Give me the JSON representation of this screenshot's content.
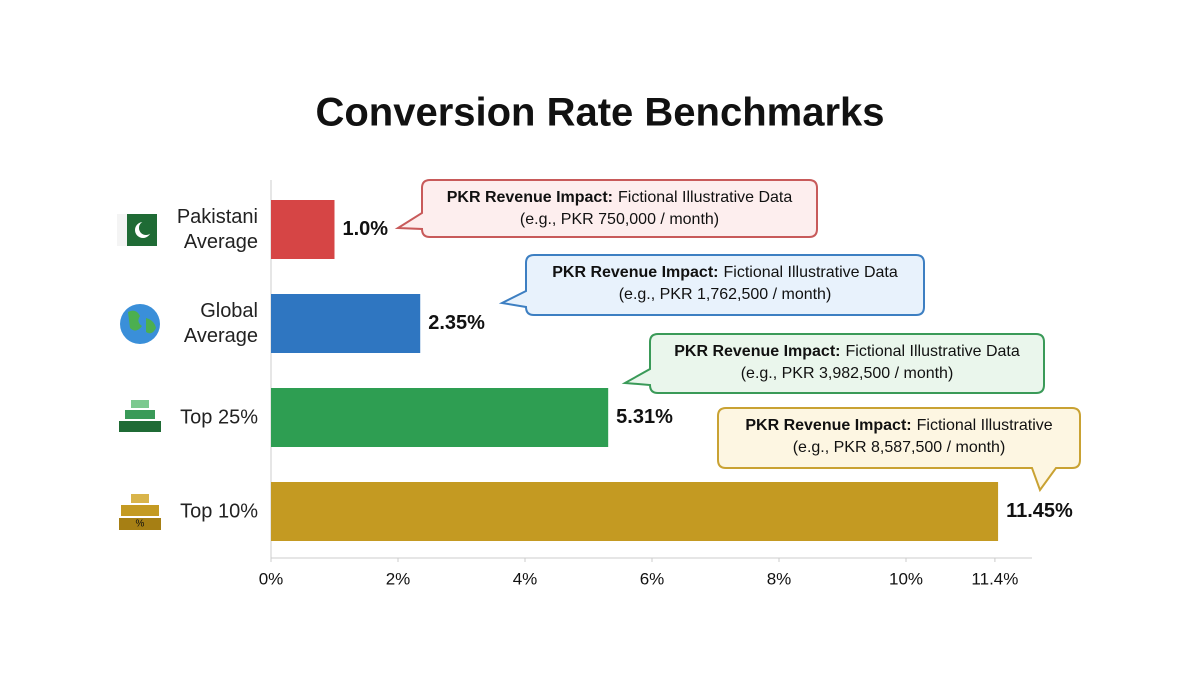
{
  "chart_data": {
    "type": "bar",
    "orientation": "horizontal",
    "title": "Conversion Rate Benchmarks",
    "categories": [
      "Pakistani Average",
      "Global Average",
      "Top 25%",
      "Top 10%"
    ],
    "values": [
      1.0,
      2.35,
      5.31,
      11.45
    ],
    "value_labels": [
      "1.0%",
      "2.35%",
      "5.31%",
      "11.45%"
    ],
    "colors": [
      "#d64545",
      "#2f76c1",
      "#2e9e52",
      "#c49a22"
    ],
    "xlim": [
      0,
      12
    ],
    "xticks": [
      {
        "value": 0,
        "label": "0%"
      },
      {
        "value": 2,
        "label": "2%"
      },
      {
        "value": 4,
        "label": "4%"
      },
      {
        "value": 6,
        "label": "6%"
      },
      {
        "value": 8,
        "label": "8%"
      },
      {
        "value": 10,
        "label": "10%"
      },
      {
        "value": 11.4,
        "label": "11.4%"
      }
    ],
    "grid": false,
    "annotations": [
      {
        "label": "PKR Revenue Impact:",
        "text": "Fictional Illustrative Data",
        "detail": "(e.g., PKR 750,000 / month)",
        "fill": "#fdeeee",
        "border": "#c85a5a"
      },
      {
        "label": "PKR Revenue Impact:",
        "text": "Fictional Illustrative Data",
        "detail": "(e.g., PKR 1,762,500 / month)",
        "fill": "#e8f2fc",
        "border": "#3d7fc2"
      },
      {
        "label": "PKR Revenue Impact:",
        "text": "Fictional Illustrative Data",
        "detail": "(e.g., PKR 3,982,500 / month)",
        "fill": "#eaf6ec",
        "border": "#3a9a58"
      },
      {
        "label": "PKR Revenue Impact:",
        "text": "Fictional Illustrative",
        "detail": "(e.g., PKR 8,587,500 / month)",
        "fill": "#fdf6e2",
        "border": "#c9a233"
      }
    ]
  }
}
